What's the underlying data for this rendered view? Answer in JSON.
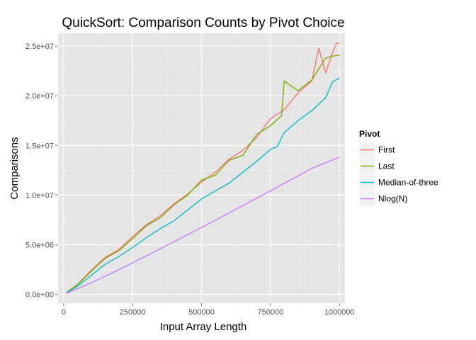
{
  "chart_data": {
    "type": "line",
    "title": "QuickSort: Comparison Counts by Pivot Choice",
    "xlabel": "Input Array Length",
    "ylabel": "Comparisons",
    "xlim": [
      -20000,
      1020000
    ],
    "ylim": [
      -900000,
      26300000
    ],
    "x_ticks": [
      0,
      250000,
      500000,
      750000,
      1000000
    ],
    "x_tick_labels": [
      "0",
      "250000",
      "500000",
      "750000",
      "1000000"
    ],
    "y_ticks": [
      0,
      5000000,
      10000000,
      15000000,
      20000000,
      25000000
    ],
    "y_tick_labels": [
      "0.0e+00",
      "5.0e+06",
      "1.0e+07",
      "1.5e+07",
      "2.0e+07",
      "2.5e+07"
    ],
    "grid": true,
    "legend": {
      "title": "Pivot",
      "position": "right"
    },
    "series": [
      {
        "name": "First",
        "color": "#F8766D",
        "x": [
          10000,
          50000,
          100000,
          150000,
          200000,
          250000,
          300000,
          350000,
          400000,
          450000,
          500000,
          550000,
          600000,
          650000,
          700000,
          750000,
          800000,
          850000,
          900000,
          925000,
          950000,
          975000,
          990000,
          1000000
        ],
        "y": [
          150000,
          1000000,
          2400000,
          3700000,
          4500000,
          5800000,
          7000000,
          7900000,
          9100000,
          10100000,
          11300000,
          12300000,
          13600000,
          14500000,
          15800000,
          17700000,
          18600000,
          20300000,
          21500000,
          24800000,
          22300000,
          24400000,
          25300000,
          25300000
        ]
      },
      {
        "name": "Last",
        "color": "#7CAE00",
        "x": [
          10000,
          50000,
          100000,
          150000,
          200000,
          250000,
          300000,
          350000,
          400000,
          450000,
          500000,
          550000,
          600000,
          650000,
          700000,
          750000,
          790000,
          800000,
          850000,
          900000,
          950000,
          975000,
          1000000
        ],
        "y": [
          150000,
          950000,
          2300000,
          3600000,
          4400000,
          5600000,
          6900000,
          7700000,
          9000000,
          10000000,
          11500000,
          12000000,
          13500000,
          14000000,
          16100000,
          17000000,
          18000000,
          21500000,
          20500000,
          21600000,
          23800000,
          24000000,
          24100000
        ]
      },
      {
        "name": "Median-of-three",
        "color": "#00BFC4",
        "x": [
          10000,
          50000,
          100000,
          150000,
          200000,
          250000,
          300000,
          350000,
          400000,
          450000,
          500000,
          550000,
          600000,
          650000,
          700000,
          750000,
          775000,
          800000,
          850000,
          900000,
          950000,
          975000,
          1000000
        ],
        "y": [
          130000,
          800000,
          1900000,
          3000000,
          3800000,
          4700000,
          5700000,
          6600000,
          7400000,
          8500000,
          9600000,
          10400000,
          11200000,
          12300000,
          13400000,
          14600000,
          14900000,
          16300000,
          17500000,
          18500000,
          19800000,
          21400000,
          21800000
        ]
      },
      {
        "name": "Nlog(N)",
        "color": "#C77CFF",
        "x": [
          10000,
          100000,
          200000,
          300000,
          400000,
          500000,
          600000,
          700000,
          800000,
          900000,
          1000000
        ],
        "y": [
          92900,
          1144000,
          2478000,
          3866000,
          5287000,
          6733000,
          8198000,
          9681000,
          11172000,
          12681000,
          13815000
        ]
      }
    ]
  }
}
